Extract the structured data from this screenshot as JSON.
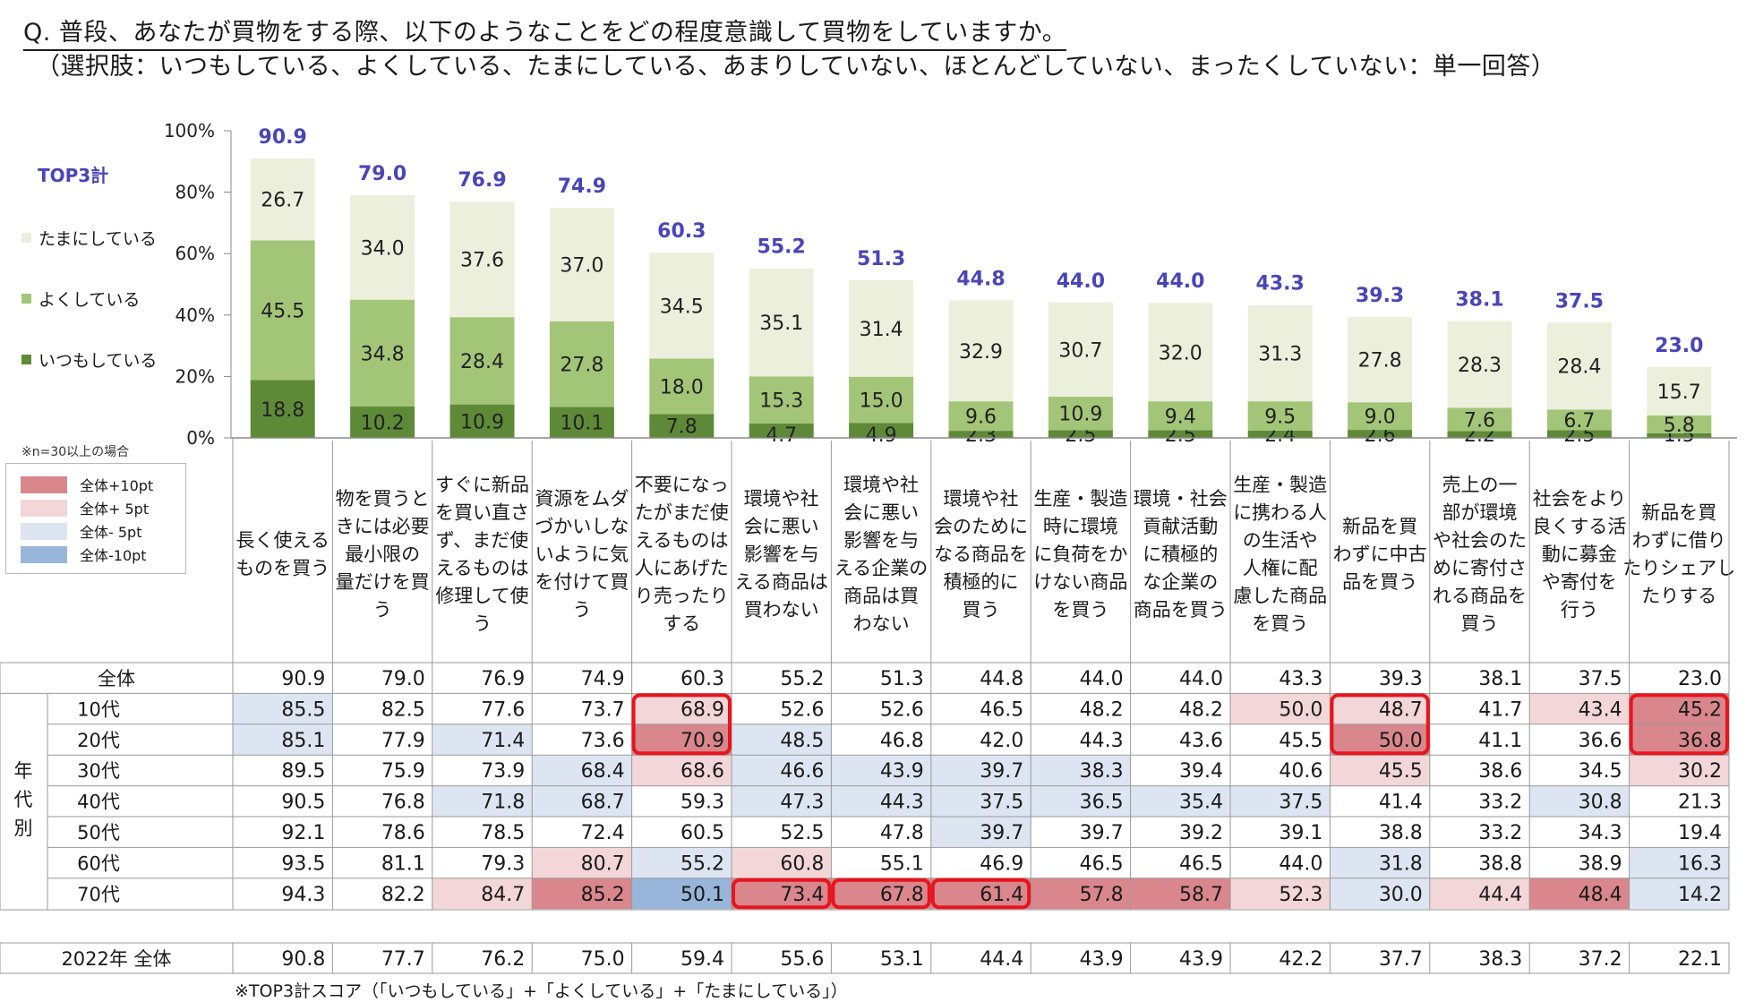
{
  "question": {
    "line1": "Q. 普段、あなたが買物をする際、以下のようなことをどの程度意識して買物をしていますか。",
    "line2": "（選択肢：いつもしている、よくしている、たまにしている、あまりしていない、ほとんどしていない、まったくしていない：単一回答）"
  },
  "legend": {
    "top3": "TOP3計",
    "tamani": "たまにしている",
    "yoku": "よくしている",
    "itsumo": "いつもしている"
  },
  "colors": {
    "itsumo": "#5e8a38",
    "yoku": "#a3c578",
    "tamani": "#ebefdc",
    "top3_text": "#4a45b8",
    "plus10": "#d9878c",
    "plus5": "#f3d6d8",
    "minus5": "#dce5f1",
    "minus10": "#98b5da",
    "highlight_border": "#e8141e"
  },
  "note_n": "※n=30以上の場合",
  "highlight_legend": [
    {
      "label": "全体+10pt",
      "color": "#d9878c"
    },
    {
      "label": "全体+  5pt",
      "color": "#f3d6d8"
    },
    {
      "label": "全体-  5pt",
      "color": "#dce5f1"
    },
    {
      "label": "全体-10pt",
      "color": "#98b5da"
    }
  ],
  "chart_data": {
    "type": "bar",
    "stacked": true,
    "ylim": [
      0,
      100
    ],
    "yticks": [
      "0%",
      "20%",
      "40%",
      "60%",
      "80%",
      "100%"
    ],
    "categories": [
      "長く使えるものを買う",
      "物を買うときには必要最小限の量だけを買う",
      "すぐに新品を買い直さず、まだ使えるものは修理して使う",
      "資源をムダづかいしないように気を付けて買う",
      "不要になったがまだ使えるものは人にあげたり売ったりする",
      "環境や社会に悪い影響を与える商品は買わない",
      "環境や社会に悪い影響を与える企業の商品は買わない",
      "環境や社会のためになる商品を積極的に買う",
      "生産・製造時に環境に負荷をかけない商品を買う",
      "環境・社会貢献活動に積極的な企業の商品を買う",
      "生産・製造に携わる人の生活や人権に配慮した商品を買う",
      "新品を買わずに中古品を買う",
      "売上の一部が環境や社会のために寄付される商品を買う",
      "社会をより良くする活動に募金や寄付を行う",
      "新品を買わずに借りたりシェアしたりする"
    ],
    "category_lines": [
      [
        "長く使える",
        "ものを買う"
      ],
      [
        "物を買うと",
        "きには必要",
        "最小限の",
        "量だけを買",
        "う"
      ],
      [
        "すぐに新品",
        "を買い直さ",
        "ず、まだ使",
        "えるものは",
        "修理して使",
        "う"
      ],
      [
        "資源をムダ",
        "づかいしな",
        "いように気",
        "を付けて買",
        "う"
      ],
      [
        "不要になっ",
        "たがまだ使",
        "えるものは",
        "人にあげた",
        "り売ったり",
        "する"
      ],
      [
        "環境や社",
        "会に悪い",
        "影響を与",
        "える商品は",
        "買わない"
      ],
      [
        "環境や社",
        "会に悪い",
        "影響を与",
        "える企業の",
        "商品は買",
        "わない"
      ],
      [
        "環境や社",
        "会のために",
        "なる商品を",
        "積極的に",
        "買う"
      ],
      [
        "生産・製造",
        "時に環境",
        "に負荷をか",
        "けない商品",
        "を買う"
      ],
      [
        "環境・社会",
        "貢献活動",
        "に積極的",
        "な企業の",
        "商品を買う"
      ],
      [
        "生産・製造",
        "に携わる人",
        "の生活や",
        "人権に配",
        "慮した商品",
        "を買う"
      ],
      [
        "新品を買",
        "わずに中古",
        "品を買う"
      ],
      [
        "売上の一",
        "部が環境",
        "や社会のた",
        "めに寄付さ",
        "れる商品を",
        "買う"
      ],
      [
        "社会をより",
        "良くする活",
        "動に募金",
        "や寄付を",
        "行う"
      ],
      [
        "新品を買",
        "わずに借り",
        "たりシェアし",
        "たりする"
      ]
    ],
    "series": [
      {
        "name": "いつもしている",
        "values": [
          18.8,
          10.2,
          10.9,
          10.1,
          7.8,
          4.7,
          4.9,
          2.3,
          2.5,
          2.5,
          2.4,
          2.6,
          2.2,
          2.5,
          1.5
        ]
      },
      {
        "name": "よくしている",
        "values": [
          45.5,
          34.8,
          28.4,
          27.8,
          18.0,
          15.3,
          15.0,
          9.6,
          10.9,
          9.4,
          9.5,
          9.0,
          7.6,
          6.7,
          5.8
        ]
      },
      {
        "name": "たまにしている",
        "values": [
          26.7,
          34.0,
          37.6,
          37.0,
          34.5,
          35.1,
          31.4,
          32.9,
          30.7,
          32.0,
          31.3,
          27.8,
          28.3,
          28.4,
          15.7
        ]
      }
    ],
    "top3": [
      90.9,
      79.0,
      76.9,
      74.9,
      60.3,
      55.2,
      51.3,
      44.8,
      44.0,
      44.0,
      43.3,
      39.3,
      38.1,
      37.5,
      23.0
    ]
  },
  "table": {
    "group_label": "年代別",
    "total_row": {
      "label": "全体",
      "values": [
        "90.9",
        "79.0",
        "76.9",
        "74.9",
        "60.3",
        "55.2",
        "51.3",
        "44.8",
        "44.0",
        "44.0",
        "43.3",
        "39.3",
        "38.1",
        "37.5",
        "23.0"
      ]
    },
    "age_rows": [
      {
        "label": "10代",
        "values": [
          "85.5",
          "82.5",
          "77.6",
          "73.7",
          "68.9",
          "52.6",
          "52.6",
          "46.5",
          "48.2",
          "48.2",
          "50.0",
          "48.7",
          "41.7",
          "43.4",
          "45.2"
        ],
        "shade": [
          "m5",
          "",
          "",
          "",
          "p5",
          "",
          "",
          "",
          "",
          "",
          "p5",
          "p5",
          "",
          "p5",
          "p10"
        ]
      },
      {
        "label": "20代",
        "values": [
          "85.1",
          "77.9",
          "71.4",
          "73.6",
          "70.9",
          "48.5",
          "46.8",
          "42.0",
          "44.3",
          "43.6",
          "45.5",
          "50.0",
          "41.1",
          "36.6",
          "36.8"
        ],
        "shade": [
          "m5",
          "",
          "m5",
          "",
          "p10",
          "m5",
          "",
          "",
          "",
          "",
          "",
          "p10",
          "",
          "",
          "p10"
        ]
      },
      {
        "label": "30代",
        "values": [
          "89.5",
          "75.9",
          "73.9",
          "68.4",
          "68.6",
          "46.6",
          "43.9",
          "39.7",
          "38.3",
          "39.4",
          "40.6",
          "45.5",
          "38.6",
          "34.5",
          "30.2"
        ],
        "shade": [
          "",
          "",
          "",
          "m5",
          "p5",
          "m5",
          "m5",
          "m5",
          "m5",
          "",
          "",
          "p5",
          "",
          "",
          "p5"
        ]
      },
      {
        "label": "40代",
        "values": [
          "90.5",
          "76.8",
          "71.8",
          "68.7",
          "59.3",
          "47.3",
          "44.3",
          "37.5",
          "36.5",
          "35.4",
          "37.5",
          "41.4",
          "33.2",
          "30.8",
          "21.3"
        ],
        "shade": [
          "",
          "",
          "m5",
          "m5",
          "",
          "m5",
          "m5",
          "m5",
          "m5",
          "m5",
          "m5",
          "",
          "",
          "m5",
          ""
        ]
      },
      {
        "label": "50代",
        "values": [
          "92.1",
          "78.6",
          "78.5",
          "72.4",
          "60.5",
          "52.5",
          "47.8",
          "39.7",
          "39.7",
          "39.2",
          "39.1",
          "38.8",
          "33.2",
          "34.3",
          "19.4"
        ],
        "shade": [
          "",
          "",
          "",
          "",
          "",
          "",
          "",
          "m5",
          "",
          "",
          "",
          "",
          "",
          "",
          ""
        ]
      },
      {
        "label": "60代",
        "values": [
          "93.5",
          "81.1",
          "79.3",
          "80.7",
          "55.2",
          "60.8",
          "55.1",
          "46.9",
          "46.5",
          "46.5",
          "44.0",
          "31.8",
          "38.8",
          "38.9",
          "16.3"
        ],
        "shade": [
          "",
          "",
          "",
          "p5",
          "m5",
          "p5",
          "",
          "",
          "",
          "",
          "",
          "m5",
          "",
          "",
          "m5"
        ]
      },
      {
        "label": "70代",
        "values": [
          "94.3",
          "82.2",
          "84.7",
          "85.2",
          "50.1",
          "73.4",
          "67.8",
          "61.4",
          "57.8",
          "58.7",
          "52.3",
          "30.0",
          "44.4",
          "48.4",
          "14.2"
        ],
        "shade": [
          "",
          "",
          "p5",
          "p10",
          "m10",
          "p10",
          "p10",
          "p10",
          "p10",
          "p10",
          "p5",
          "m5",
          "p5",
          "p10",
          "m5"
        ]
      }
    ],
    "row_2022": {
      "label": "2022年 全体",
      "values": [
        "90.8",
        "77.7",
        "76.2",
        "75.0",
        "59.4",
        "55.6",
        "53.1",
        "44.4",
        "43.9",
        "43.9",
        "42.2",
        "37.7",
        "38.3",
        "37.2",
        "22.1"
      ]
    }
  },
  "footnote": "※TOP3計スコア（「いつもしている」+「よくしている」+「たまにしている」）"
}
